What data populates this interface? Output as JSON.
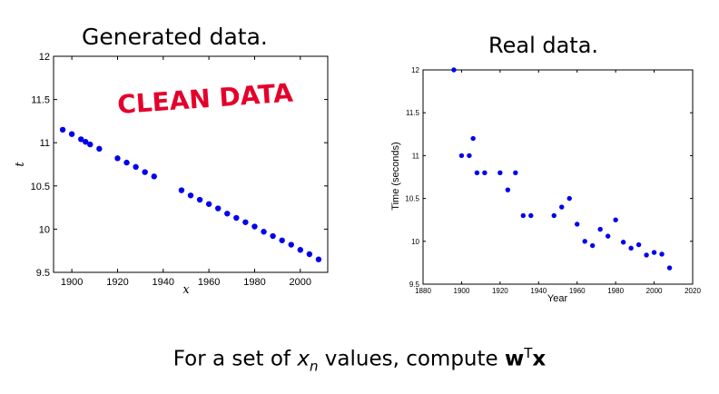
{
  "chart_data": [
    {
      "type": "scatter",
      "title": "Generated data.",
      "xlabel": "x",
      "ylabel": "t",
      "xlim": [
        1892,
        2012
      ],
      "ylim": [
        9.5,
        12
      ],
      "xticks": [
        "1900",
        "1920",
        "1940",
        "1960",
        "1980",
        "2000"
      ],
      "xtick_values": [
        1900,
        1920,
        1940,
        1960,
        1980,
        2000
      ],
      "yticks": [
        "9.5",
        "10",
        "10.5",
        "11",
        "11.5",
        "12"
      ],
      "ytick_values": [
        9.5,
        10,
        10.5,
        11,
        11.5,
        12
      ],
      "annotation": "CLEAN DATA",
      "marker_color": "#0000ee",
      "annotation_color": "#e5002b",
      "points": [
        {
          "x": 1896,
          "y": 11.15
        },
        {
          "x": 1900,
          "y": 11.1
        },
        {
          "x": 1904,
          "y": 11.04
        },
        {
          "x": 1906,
          "y": 11.01
        },
        {
          "x": 1908,
          "y": 10.98
        },
        {
          "x": 1912,
          "y": 10.93
        },
        {
          "x": 1920,
          "y": 10.82
        },
        {
          "x": 1924,
          "y": 10.77
        },
        {
          "x": 1928,
          "y": 10.72
        },
        {
          "x": 1932,
          "y": 10.66
        },
        {
          "x": 1936,
          "y": 10.61
        },
        {
          "x": 1948,
          "y": 10.45
        },
        {
          "x": 1952,
          "y": 10.39
        },
        {
          "x": 1956,
          "y": 10.34
        },
        {
          "x": 1960,
          "y": 10.29
        },
        {
          "x": 1964,
          "y": 10.24
        },
        {
          "x": 1968,
          "y": 10.18
        },
        {
          "x": 1972,
          "y": 10.13
        },
        {
          "x": 1976,
          "y": 10.08
        },
        {
          "x": 1980,
          "y": 10.03
        },
        {
          "x": 1984,
          "y": 9.97
        },
        {
          "x": 1988,
          "y": 9.92
        },
        {
          "x": 1992,
          "y": 9.87
        },
        {
          "x": 1996,
          "y": 9.82
        },
        {
          "x": 2000,
          "y": 9.76
        },
        {
          "x": 2004,
          "y": 9.71
        },
        {
          "x": 2008,
          "y": 9.65
        }
      ]
    },
    {
      "type": "scatter",
      "title": "Real data.",
      "xlabel": "Year",
      "ylabel": "Time (seconds)",
      "xlim": [
        1880,
        2020
      ],
      "ylim": [
        9.5,
        12
      ],
      "xticks": [
        "1880",
        "1900",
        "1920",
        "1940",
        "1960",
        "1980",
        "2000",
        "2020"
      ],
      "xtick_values": [
        1880,
        1900,
        1920,
        1940,
        1960,
        1980,
        2000,
        2020
      ],
      "yticks": [
        "9.5",
        "10",
        "10.5",
        "11",
        "11.5",
        "12"
      ],
      "ytick_values": [
        9.5,
        10,
        10.5,
        11,
        11.5,
        12
      ],
      "marker_color": "#0000ee",
      "points": [
        {
          "x": 1896,
          "y": 12.0
        },
        {
          "x": 1900,
          "y": 11.0
        },
        {
          "x": 1904,
          "y": 11.0
        },
        {
          "x": 1906,
          "y": 11.2
        },
        {
          "x": 1908,
          "y": 10.8
        },
        {
          "x": 1912,
          "y": 10.8
        },
        {
          "x": 1920,
          "y": 10.8
        },
        {
          "x": 1924,
          "y": 10.6
        },
        {
          "x": 1928,
          "y": 10.8
        },
        {
          "x": 1932,
          "y": 10.3
        },
        {
          "x": 1936,
          "y": 10.3
        },
        {
          "x": 1948,
          "y": 10.3
        },
        {
          "x": 1952,
          "y": 10.4
        },
        {
          "x": 1956,
          "y": 10.5
        },
        {
          "x": 1960,
          "y": 10.2
        },
        {
          "x": 1964,
          "y": 10.0
        },
        {
          "x": 1968,
          "y": 9.95
        },
        {
          "x": 1972,
          "y": 10.14
        },
        {
          "x": 1976,
          "y": 10.06
        },
        {
          "x": 1980,
          "y": 10.25
        },
        {
          "x": 1984,
          "y": 9.99
        },
        {
          "x": 1988,
          "y": 9.92
        },
        {
          "x": 1992,
          "y": 9.96
        },
        {
          "x": 1996,
          "y": 9.84
        },
        {
          "x": 2000,
          "y": 9.87
        },
        {
          "x": 2004,
          "y": 9.85
        },
        {
          "x": 2008,
          "y": 9.69
        }
      ]
    }
  ],
  "caption": {
    "prefix": "For a set of ",
    "var": "x",
    "sub": "n",
    "middle": " values, compute ",
    "vec_w": "w",
    "sup": "T",
    "vec_x": "x"
  }
}
